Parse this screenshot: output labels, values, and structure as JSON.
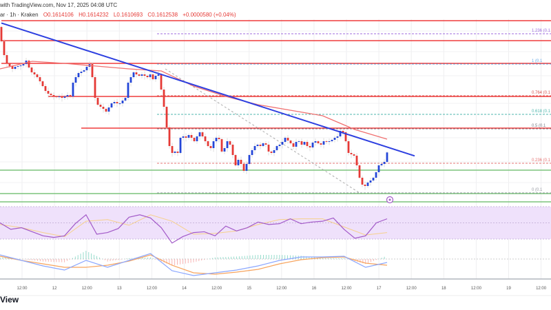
{
  "header": {
    "line1": "with TradingView.com, Nov 17, 2025 04:08 UTC",
    "symbol": "ar · 1h · Kraken",
    "open": "O0.1614106",
    "high": "H0.1614232",
    "low": "L0.1610693",
    "close": "C0.1612538",
    "change": "+0.0000580 (+0.04%)"
  },
  "logo_text": "View",
  "colors": {
    "up": "#2446d8",
    "down": "#e53935",
    "trendline": "#2d3fe0",
    "ma": "#f07070",
    "resistance": "#ef3b3b",
    "support": "#7cc47c",
    "rsi": "#a259c8",
    "rsi_ma": "#f6d08a",
    "rsi_band": "#efe1fb",
    "macd": "#8aa6ff",
    "signal": "#f7a35c",
    "hist_up": "#7dd3c0",
    "hist_down": "#f6a0a0"
  },
  "chart_data": [
    {
      "type": "candlestick",
      "interval": "1h",
      "close": [
        0.17254,
        0.17114,
        0.1703,
        0.17002,
        0.16974,
        0.16995,
        0.17002,
        0.17009,
        0.17023,
        0.17058,
        0.16988,
        0.16939,
        0.16918,
        0.1689,
        0.16848,
        0.16799,
        0.1675,
        0.16722,
        0.16708,
        0.16694,
        0.16687,
        0.16694,
        0.1668,
        0.16694,
        0.16708,
        0.16694,
        0.16834,
        0.1689,
        0.16932,
        0.16946,
        0.1696,
        0.16995,
        0.17023,
        0.1689,
        0.1668,
        0.1661,
        0.16589,
        0.16568,
        0.1654,
        0.16582,
        0.16624,
        0.16638,
        0.16624,
        0.16624,
        0.16652,
        0.1668,
        0.16834,
        0.1689,
        0.16939,
        0.16918,
        0.16904,
        0.16918,
        0.16904,
        0.1689,
        0.16918,
        0.16869,
        0.16904,
        0.16918,
        0.16764,
        0.16589,
        0.16379,
        0.1619,
        0.1612,
        0.16134,
        0.1612,
        0.16274,
        0.16288,
        0.16274,
        0.16302,
        0.16274,
        0.16239,
        0.16288,
        0.1633,
        0.16288,
        0.16239,
        0.1619,
        0.16169,
        0.16239,
        0.16274,
        0.1626,
        0.16134,
        0.16169,
        0.16239,
        0.16204,
        0.16099,
        0.15994,
        0.1605,
        0.16008,
        0.15938,
        0.16008,
        0.16099,
        0.16148,
        0.1619,
        0.16204,
        0.1619,
        0.16218,
        0.16204,
        0.16134,
        0.1612,
        0.16148,
        0.1619,
        0.16204,
        0.16232,
        0.16274,
        0.16246,
        0.16218,
        0.16183,
        0.16232,
        0.16239,
        0.16204,
        0.16232,
        0.1619,
        0.16176,
        0.16225,
        0.16239,
        0.16218,
        0.16204,
        0.16239,
        0.16232,
        0.16239,
        0.16253,
        0.16274,
        0.16288,
        0.16344,
        0.1633,
        0.16239,
        0.1612,
        0.16106,
        0.16092,
        0.15994,
        0.15868,
        0.15798,
        0.15784,
        0.15819,
        0.1584,
        0.15868,
        0.15924,
        0.15994,
        0.16008,
        0.16029,
        0.16125
      ],
      "first_open": 0.174,
      "moving_average": [
        0.16974,
        0.17051,
        0.1703,
        0.17002,
        0.16974,
        0.16953,
        0.16799,
        0.16694,
        0.1661,
        0.16554,
        0.16498,
        0.16358,
        0.1626
      ],
      "trendline": [
        [
          0,
          0.1744
        ],
        [
          150,
          0.1609
        ]
      ],
      "fib_guide": [
        [
          59.5,
          0.16974
        ],
        [
          130,
          0.15714
        ]
      ],
      "resistance_lines": [
        {
          "price": 0.17464,
          "from": 0
        },
        {
          "price": 0.17261,
          "from": 0
        },
        {
          "price": 0.1703,
          "from": 0
        },
        {
          "price": 0.16694,
          "from": 17
        },
        {
          "price": 0.16372,
          "from": 29
        }
      ],
      "support_lines": [
        0.15945,
        0.15707,
        0.15623
      ],
      "fib_levels": [
        {
          "level": "1.236",
          "label": "1.236 (0.1",
          "price": 0.17331,
          "color": "#9c6ade"
        },
        {
          "level": "1",
          "label": "1 (0.1",
          "price": 0.17023,
          "color": "#64a8e6"
        },
        {
          "level": "0.764",
          "label": "0.764 (0.1",
          "price": 0.16701,
          "color": "#d9534f"
        },
        {
          "level": "0.618",
          "label": "0.618 (0.1",
          "price": 0.16512,
          "color": "#4db6ac"
        },
        {
          "level": "0.5",
          "label": "0.5 (0.1",
          "price": 0.16365,
          "color": "#787b86"
        },
        {
          "level": "0.236",
          "label": "0.236 (0.1",
          "price": 0.16015,
          "color": "#e57373"
        },
        {
          "level": "0",
          "label": "0 (0.1",
          "price": 0.15714,
          "color": "#9598a1"
        }
      ],
      "x_tick_labels": [
        "12:00",
        "12",
        "12:00",
        "13",
        "12:00",
        "14",
        "12:00",
        "15",
        "12:00",
        "16",
        "12:00",
        "17",
        "12:00",
        "18",
        "12:00",
        "19",
        "12:00"
      ]
    },
    {
      "type": "line",
      "indicator": "RSI",
      "ylim": [
        0,
        100
      ],
      "band": [
        30,
        70
      ],
      "rsi": [
        50,
        42,
        44,
        39,
        34,
        32,
        34,
        49,
        60,
        36,
        38,
        43,
        57,
        60,
        56,
        44,
        25,
        33,
        38,
        39,
        34,
        46,
        40,
        44,
        51,
        48,
        49,
        55,
        49,
        51,
        52,
        56,
        42,
        31,
        34,
        50,
        55
      ],
      "rsi_ma": [
        48,
        44,
        38,
        33,
        52,
        54,
        47,
        60,
        52,
        36,
        37,
        40,
        48,
        54,
        55,
        55,
        45,
        35,
        38
      ]
    },
    {
      "type": "line",
      "indicator": "MACD",
      "macd": [
        0.00012,
        -4e-05,
        -0.0002,
        -0.00032,
        -4e-05,
        -0.00024,
        -4e-05,
        0.00016,
        -0.00034,
        -0.00048,
        -0.0004,
        -0.00032,
        -0.0002,
        -4e-05,
        6e-05,
        6e-05,
        8e-05,
        -0.00024,
        -0.0001
      ],
      "signal": [
        8e-05,
        -4e-05,
        -0.00014,
        -0.00024,
        -0.00024,
        -0.00018,
        -6e-05,
        0.00012,
        -0.00018,
        -0.0004,
        -0.00044,
        -0.00038,
        -0.0003,
        -0.00014,
        -2e-05,
        4e-05,
        6e-05,
        -0.00012,
        -0.00018
      ]
    }
  ]
}
